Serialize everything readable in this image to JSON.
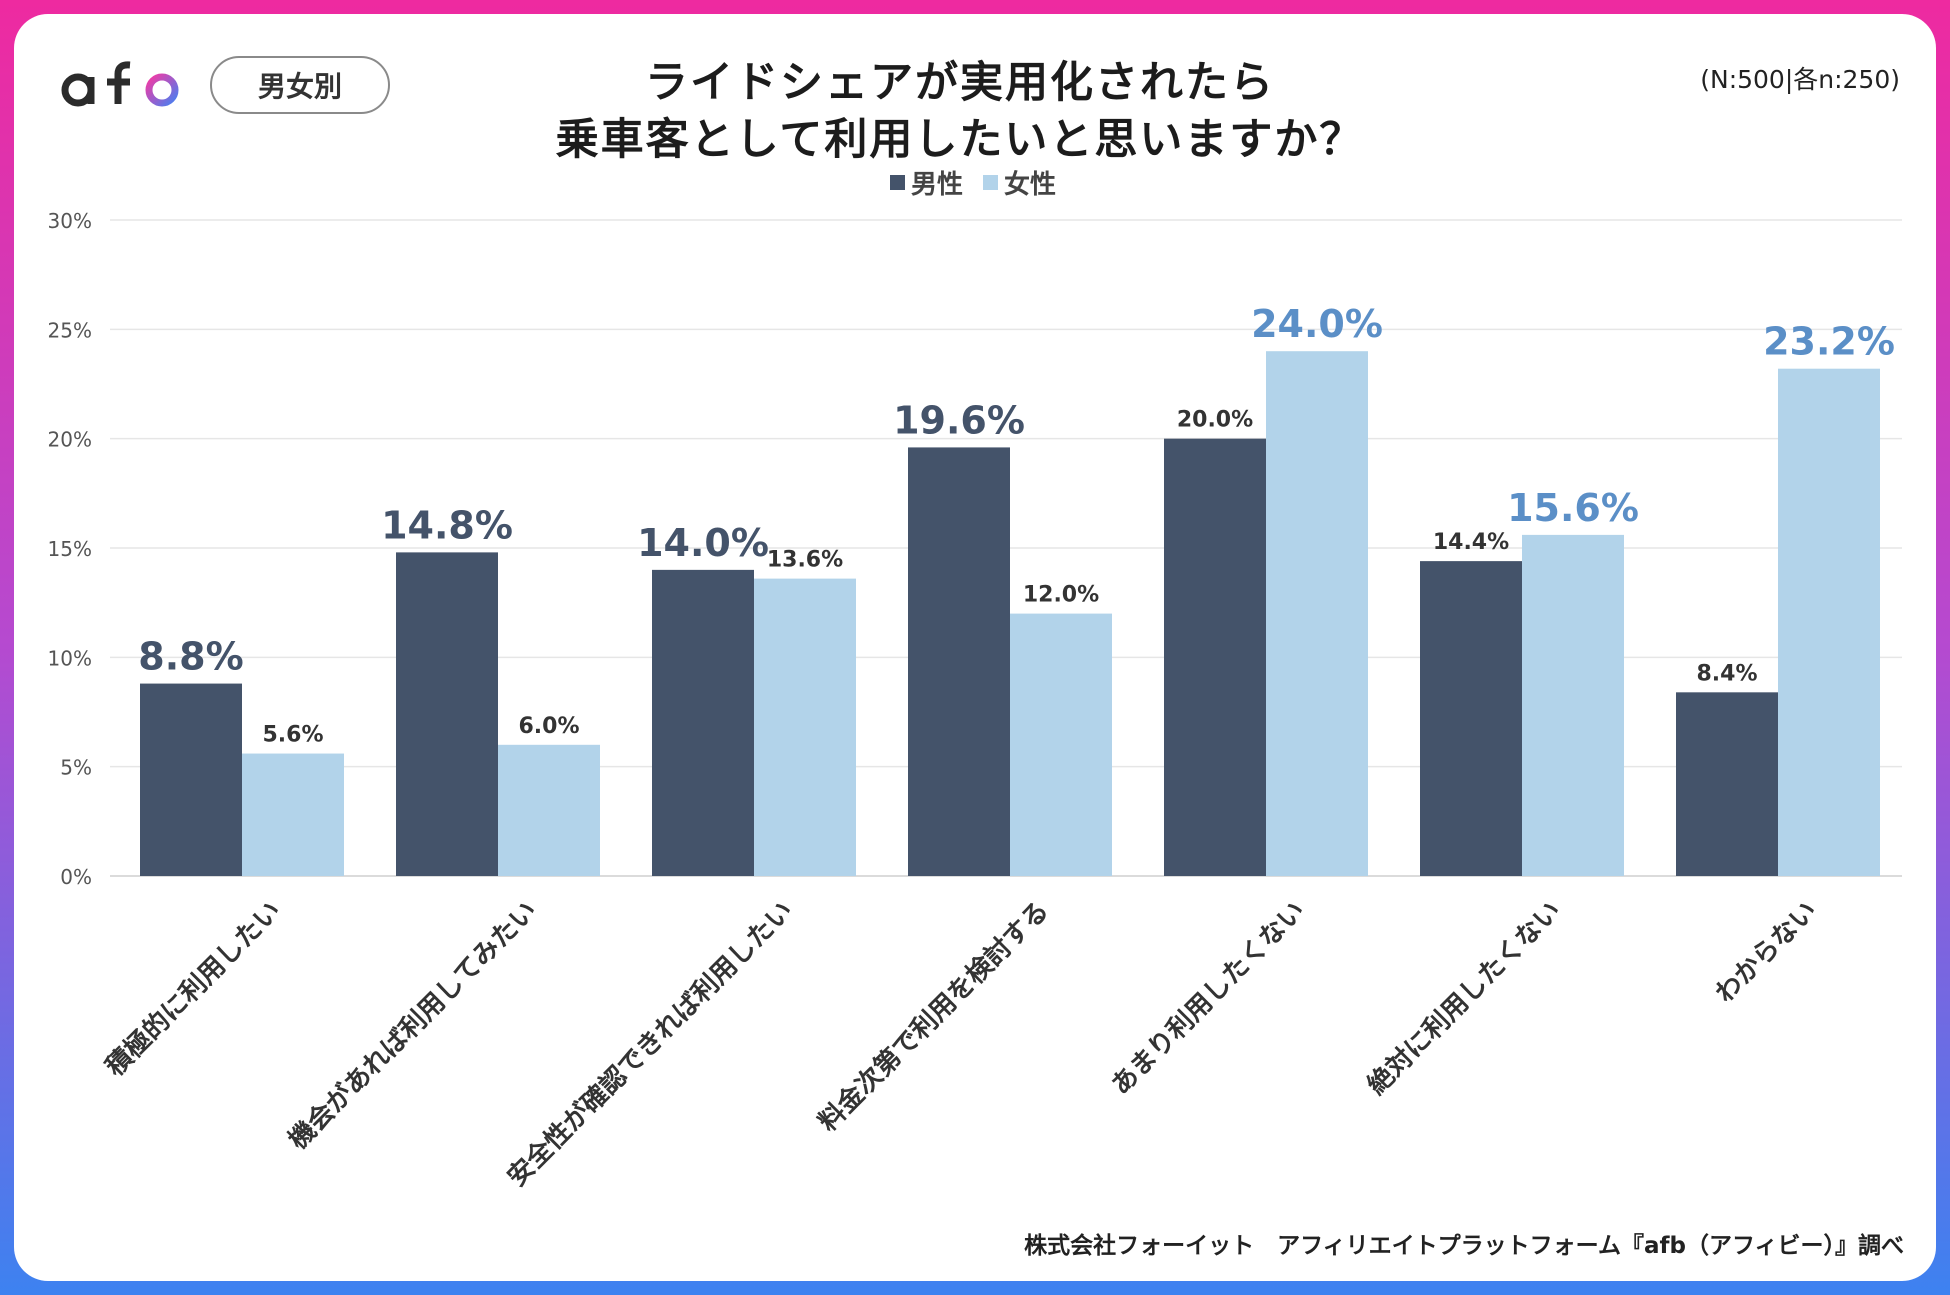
{
  "header": {
    "logo_text": "afb",
    "tag_label": "男女別",
    "title_line1": "ライドシェアが実用化されたら",
    "title_line2": "乗車客として利用したいと思いますか？",
    "sample_note": "(N:500|各n:250)"
  },
  "footer": {
    "source": "株式会社フォーイット　アフィリエイトプラットフォーム『afb（アフィビー）』調べ"
  },
  "colors": {
    "male": "#44536a",
    "female": "#b2d3ea",
    "female_highlight_label": "#5b8fc7",
    "grid": "#e6e6e6",
    "axis_text": "#555555"
  },
  "chart_data": {
    "type": "bar",
    "title": "ライドシェアが実用化されたら乗車客として利用したいと思いますか？",
    "xlabel": "",
    "ylabel": "",
    "ylim": [
      0,
      30
    ],
    "yticks": [
      0,
      5,
      10,
      15,
      20,
      25,
      30
    ],
    "ytick_labels": [
      "0%",
      "5%",
      "10%",
      "15%",
      "20%",
      "25%",
      "30%"
    ],
    "grid": true,
    "legend_position": "top-center",
    "categories": [
      "積極的に利用したい",
      "機会があれば利用してみたい",
      "安全性が確認できれば利用したい",
      "料金次第で利用を検討する",
      "あまり利用したくない",
      "絶対に利用したくない",
      "わからない"
    ],
    "series": [
      {
        "name": "男性",
        "values": [
          8.8,
          14.8,
          14.0,
          19.6,
          20.0,
          14.4,
          8.4
        ],
        "labels": [
          "8.8%",
          "14.8%",
          "14.0%",
          "19.6%",
          "20.0%",
          "14.4%",
          "8.4%"
        ]
      },
      {
        "name": "女性",
        "values": [
          5.6,
          6.0,
          13.6,
          12.0,
          24.0,
          15.6,
          23.2
        ],
        "labels": [
          "5.6%",
          "6.0%",
          "13.6%",
          "12.0%",
          "24.0%",
          "15.6%",
          "23.2%"
        ]
      }
    ]
  }
}
